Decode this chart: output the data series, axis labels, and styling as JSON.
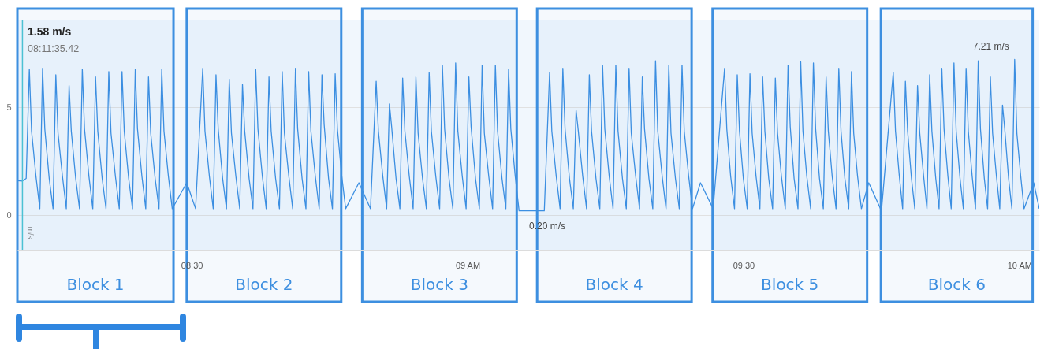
{
  "chart_data": {
    "type": "line",
    "ylabel": "m/s",
    "xlim": [
      8.184,
      10.036
    ],
    "ylim": [
      -1.6,
      9.05
    ],
    "xticks": [
      {
        "value": 8.5,
        "label": "08:30"
      },
      {
        "value": 9,
        "label": "09 AM"
      },
      {
        "value": 9.5,
        "label": "09:30"
      },
      {
        "value": 10,
        "label": "10 AM"
      }
    ],
    "yticks": [
      0,
      5
    ],
    "grid": "y",
    "series": [
      {
        "color": "#3c8fe2",
        "x": [
          8.184,
          8.1932,
          8.2,
          8.2057,
          8.2097,
          8.2177,
          8.2247,
          8.2297,
          8.2337,
          8.2417,
          8.2487,
          8.2537,
          8.2577,
          8.2657,
          8.2727,
          8.2777,
          8.2817,
          8.2897,
          8.2967,
          8.3017,
          8.3057,
          8.3137,
          8.3207,
          8.3257,
          8.3297,
          8.3377,
          8.3447,
          8.3497,
          8.3537,
          8.3617,
          8.3687,
          8.3737,
          8.3777,
          8.3857,
          8.3927,
          8.3977,
          8.4017,
          8.4097,
          8.4167,
          8.4217,
          8.4257,
          8.4337,
          8.4407,
          8.4457,
          8.4497,
          8.4577,
          8.4647,
          8.491,
          8.507,
          8.52,
          8.524,
          8.532,
          8.539,
          8.544,
          8.548,
          8.556,
          8.563,
          8.568,
          8.572,
          8.58,
          8.587,
          8.592,
          8.596,
          8.604,
          8.611,
          8.616,
          8.62,
          8.628,
          8.635,
          8.64,
          8.644,
          8.652,
          8.659,
          8.664,
          8.668,
          8.676,
          8.683,
          8.688,
          8.692,
          8.7,
          8.707,
          8.712,
          8.716,
          8.724,
          8.731,
          8.736,
          8.74,
          8.748,
          8.755,
          8.76,
          8.764,
          8.772,
          8.779,
          8.803,
          8.824,
          8.8343,
          8.8383,
          8.8463,
          8.8533,
          8.8583,
          8.8623,
          8.8703,
          8.8773,
          8.8823,
          8.8863,
          8.8943,
          8.9013,
          8.9063,
          8.9103,
          8.9183,
          8.9253,
          8.9303,
          8.9343,
          8.9423,
          8.9493,
          8.9543,
          8.9583,
          8.9663,
          8.9733,
          8.9783,
          8.9823,
          8.9903,
          8.9973,
          9.0023,
          9.0063,
          9.0143,
          9.0213,
          9.0263,
          9.0303,
          9.0383,
          9.0453,
          9.0503,
          9.0543,
          9.0623,
          9.0693,
          9.0743,
          9.0783,
          9.0863,
          9.0933,
          9.12,
          9.139,
          9.1486,
          9.1526,
          9.1606,
          9.1676,
          9.1726,
          9.1766,
          9.1846,
          9.1916,
          9.1966,
          9.2006,
          9.2086,
          9.2156,
          9.2206,
          9.2246,
          9.2326,
          9.2396,
          9.2446,
          9.2486,
          9.2566,
          9.2636,
          9.2686,
          9.2726,
          9.2806,
          9.2876,
          9.2926,
          9.2966,
          9.3046,
          9.3116,
          9.3166,
          9.3206,
          9.3286,
          9.3356,
          9.3406,
          9.3446,
          9.3526,
          9.3596,
          9.3646,
          9.3686,
          9.3766,
          9.3836,
          9.3886,
          9.3926,
          9.4006,
          9.4076,
          9.422,
          9.445,
          9.4657,
          9.4697,
          9.4767,
          9.4837,
          9.4887,
          9.4927,
          9.4997,
          9.5067,
          9.5117,
          9.5157,
          9.5227,
          9.5297,
          9.5347,
          9.5387,
          9.5457,
          9.5527,
          9.5577,
          9.5617,
          9.5687,
          9.5757,
          9.5807,
          9.5847,
          9.5917,
          9.5987,
          9.6037,
          9.6077,
          9.6147,
          9.6217,
          9.6267,
          9.6307,
          9.6377,
          9.6447,
          9.6497,
          9.6537,
          9.6607,
          9.6677,
          9.6727,
          9.6767,
          9.6837,
          9.6907,
          9.6957,
          9.6997,
          9.7067,
          9.7137,
          9.727,
          9.75,
          9.7714,
          9.7754,
          9.7824,
          9.7884,
          9.7934,
          9.7974,
          9.8044,
          9.8104,
          9.8154,
          9.8194,
          9.8264,
          9.8324,
          9.8374,
          9.8414,
          9.8484,
          9.8544,
          9.8594,
          9.8634,
          9.8704,
          9.8764,
          9.8814,
          9.8854,
          9.8924,
          9.8984,
          9.9034,
          9.9074,
          9.9144,
          9.9204,
          9.9254,
          9.9294,
          9.9364,
          9.9424,
          9.9474,
          9.9514,
          9.9584,
          9.9644,
          9.9694,
          9.9734,
          9.9804,
          9.9864,
          9.9914,
          9.9954,
          10.0024,
          10.0084,
          10.026,
          10.036
        ],
        "values": [
          1.6,
          1.58,
          1.7,
          6.75,
          3.9,
          1.8,
          0.3,
          6.8,
          4.0,
          1.7,
          0.3,
          6.5,
          3.8,
          1.8,
          0.3,
          6.0,
          3.9,
          1.7,
          0.3,
          6.75,
          4.0,
          1.8,
          0.3,
          6.4,
          3.9,
          1.7,
          0.3,
          6.65,
          3.8,
          1.8,
          0.3,
          6.65,
          3.9,
          1.7,
          0.3,
          6.75,
          4.0,
          1.8,
          0.3,
          6.4,
          3.8,
          1.7,
          0.3,
          6.75,
          3.9,
          1.8,
          0.3,
          1.5,
          0.3,
          6.8,
          3.9,
          1.8,
          0.3,
          6.5,
          4.0,
          1.7,
          0.3,
          6.3,
          3.8,
          1.8,
          0.3,
          6.05,
          3.9,
          1.7,
          0.3,
          6.75,
          4.0,
          1.8,
          0.3,
          6.4,
          3.9,
          1.7,
          0.3,
          6.65,
          3.8,
          1.8,
          0.3,
          6.8,
          4.0,
          1.7,
          0.3,
          6.65,
          3.9,
          1.8,
          0.3,
          6.5,
          4.2,
          1.7,
          0.3,
          6.55,
          4.0,
          1.8,
          0.3,
          1.5,
          0.3,
          6.2,
          3.9,
          1.8,
          0.3,
          5.15,
          4.1,
          1.7,
          0.3,
          6.35,
          3.9,
          1.8,
          0.3,
          6.4,
          3.8,
          1.7,
          0.3,
          6.6,
          3.9,
          1.8,
          0.3,
          6.95,
          4.0,
          1.7,
          0.3,
          7.05,
          3.9,
          1.8,
          0.3,
          6.4,
          4.1,
          1.7,
          0.3,
          6.95,
          3.8,
          1.8,
          0.3,
          6.95,
          3.9,
          1.7,
          0.3,
          6.75,
          4.0,
          1.8,
          0.2,
          0.2,
          0.2,
          6.6,
          3.9,
          1.8,
          0.3,
          6.8,
          4.0,
          1.7,
          0.3,
          4.85,
          3.9,
          1.8,
          0.3,
          6.5,
          3.9,
          1.7,
          0.3,
          6.95,
          4.0,
          1.8,
          0.3,
          6.95,
          3.9,
          1.7,
          0.3,
          6.8,
          3.8,
          1.8,
          0.3,
          6.4,
          4.0,
          1.7,
          0.3,
          7.15,
          3.9,
          1.8,
          0.3,
          6.95,
          3.8,
          1.7,
          0.3,
          6.95,
          3.9,
          1.8,
          0.3,
          1.5,
          0.3,
          6.8,
          4.0,
          1.8,
          0.3,
          6.5,
          3.9,
          1.7,
          0.3,
          6.55,
          3.8,
          1.8,
          0.3,
          6.4,
          3.9,
          1.7,
          0.3,
          6.35,
          3.8,
          1.8,
          0.3,
          6.95,
          4.1,
          1.7,
          0.3,
          7.1,
          3.9,
          1.8,
          0.3,
          7.05,
          4.0,
          1.7,
          0.3,
          6.4,
          3.9,
          1.8,
          0.3,
          6.8,
          3.9,
          1.7,
          0.3,
          6.65,
          3.8,
          1.8,
          0.3,
          1.5,
          0.2,
          6.6,
          3.9,
          1.8,
          0.3,
          6.2,
          3.9,
          1.7,
          0.3,
          6.0,
          3.8,
          1.8,
          0.3,
          6.5,
          3.9,
          1.7,
          0.3,
          6.8,
          4.0,
          1.8,
          0.3,
          7.05,
          3.9,
          1.7,
          0.3,
          6.8,
          3.9,
          1.8,
          0.3,
          7.15,
          4.0,
          1.7,
          0.3,
          6.4,
          3.8,
          1.8,
          0.3,
          5.1,
          4.0,
          1.7,
          0.3,
          7.21,
          3.8,
          1.8,
          0.3,
          1.5,
          0.3
        ]
      }
    ],
    "ref_lines": [
      {
        "axis": "x",
        "value": 8.1932,
        "color": "#4cc4d4"
      }
    ],
    "bands": [
      {
        "axis": "x",
        "from": 8.184,
        "to": 8.467,
        "label": "Block 1",
        "color": "#3d8fe0"
      },
      {
        "axis": "x",
        "from": 8.491,
        "to": 8.771,
        "label": "Block 2",
        "color": "#3d8fe0"
      },
      {
        "axis": "x",
        "from": 8.809,
        "to": 9.089,
        "label": "Block 3",
        "color": "#3d8fe0"
      },
      {
        "axis": "x",
        "from": 9.126,
        "to": 9.406,
        "label": "Block 4",
        "color": "#3d8fe0"
      },
      {
        "axis": "x",
        "from": 9.444,
        "to": 9.724,
        "label": "Block 5",
        "color": "#3d8fe0"
      },
      {
        "axis": "x",
        "from": 9.749,
        "to": 10.024,
        "label": "Block 6",
        "color": "#3d8fe0"
      }
    ],
    "annotations": [
      "1.58 m/s",
      "08:11:35.42",
      {
        "text": "0.20 m/s",
        "x": 9.12,
        "y": 0.2
      },
      {
        "text": "7.21 m/s",
        "x": 9.9914,
        "y": 7.21
      }
    ]
  }
}
